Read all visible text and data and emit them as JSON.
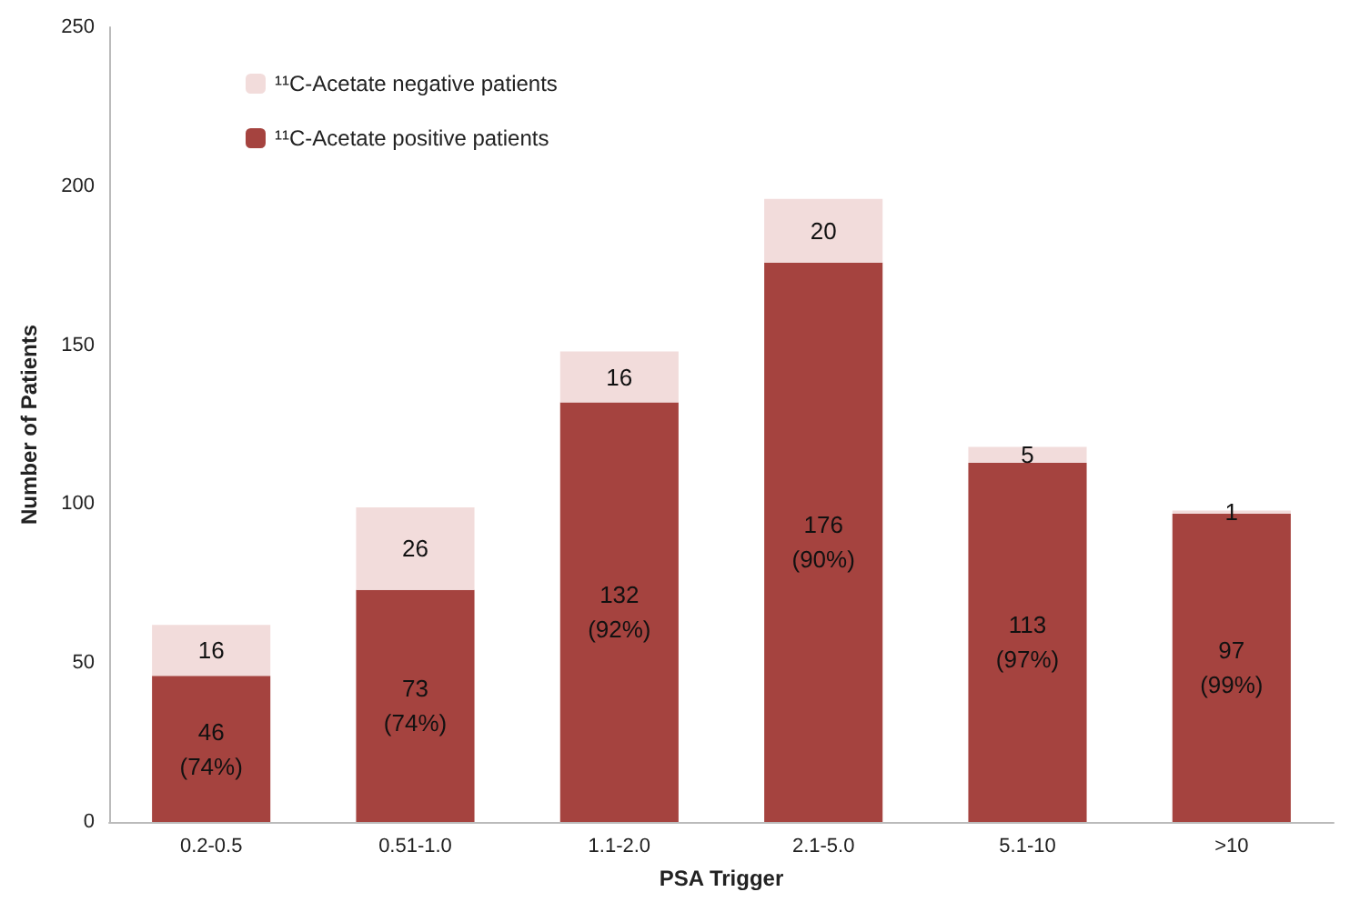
{
  "chart_data": {
    "type": "bar",
    "xlabel": "PSA Trigger",
    "ylabel": "Number of Patients",
    "categories": [
      "0.2-0.5",
      "0.51-1.0",
      "1.1-2.0",
      "2.1-5.0",
      "5.1-10",
      ">10"
    ],
    "stacked": true,
    "series": [
      {
        "name": "¹¹C-Acetate positive patients",
        "color": "#a5433f",
        "values": [
          46,
          73,
          132,
          176,
          113,
          97
        ],
        "value_labels": [
          "46\n(74%)",
          "73\n(74%)",
          "132\n(92%)",
          "176\n(90%)",
          "113\n(97%)",
          "97\n(99%)"
        ]
      },
      {
        "name": "¹¹C-Acetate negative patients",
        "color": "#f2dcdb",
        "values": [
          16,
          26,
          16,
          20,
          5,
          1
        ],
        "value_labels": [
          "16",
          "26",
          "16",
          "20",
          "5",
          "1"
        ]
      }
    ],
    "ylim": [
      0,
      250
    ],
    "yticks": [
      0,
      50,
      100,
      150,
      200,
      250
    ],
    "grid": false,
    "legend": "top left"
  }
}
